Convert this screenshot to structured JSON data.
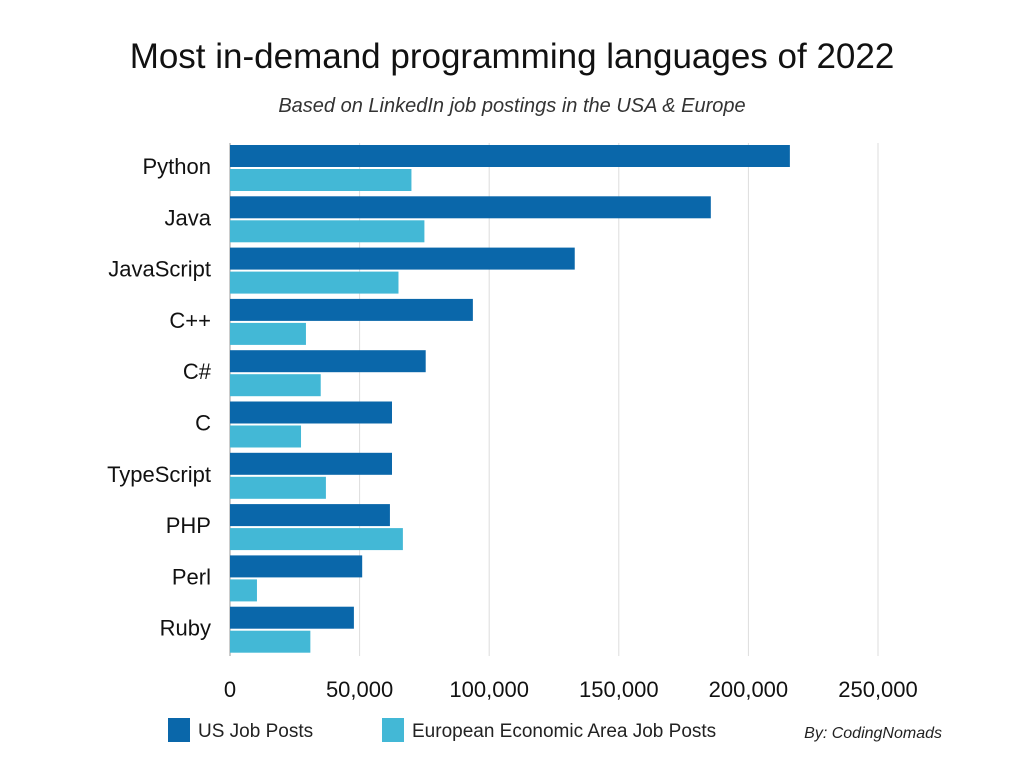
{
  "chart_data": {
    "type": "bar",
    "orientation": "horizontal",
    "title": "Most in-demand programming languages of 2022",
    "subtitle": "Based on LinkedIn job postings in the USA & Europe",
    "categories": [
      "Python",
      "Java",
      "JavaScript",
      "C++",
      "C#",
      "C",
      "TypeScript",
      "PHP",
      "Perl",
      "Ruby"
    ],
    "series": [
      {
        "name": "US Job Posts",
        "color": "#0a67aa",
        "values": [
          216000,
          185500,
          133000,
          93700,
          75500,
          62500,
          62500,
          61700,
          51000,
          47800
        ]
      },
      {
        "name": "European Economic Area Job Posts",
        "color": "#43b8d6",
        "values": [
          70000,
          75000,
          65000,
          29300,
          35000,
          27400,
          37000,
          66700,
          10400,
          31000
        ]
      }
    ],
    "xlim": [
      0,
      250000
    ],
    "xticks": [
      0,
      50000,
      100000,
      150000,
      200000,
      250000
    ],
    "xtick_labels": [
      "0",
      "50,000",
      "100,000",
      "150,000",
      "200,000",
      "250,000"
    ],
    "grid": "vertical",
    "legend_position": "bottom-left",
    "credit": "By: CodingNomads"
  }
}
